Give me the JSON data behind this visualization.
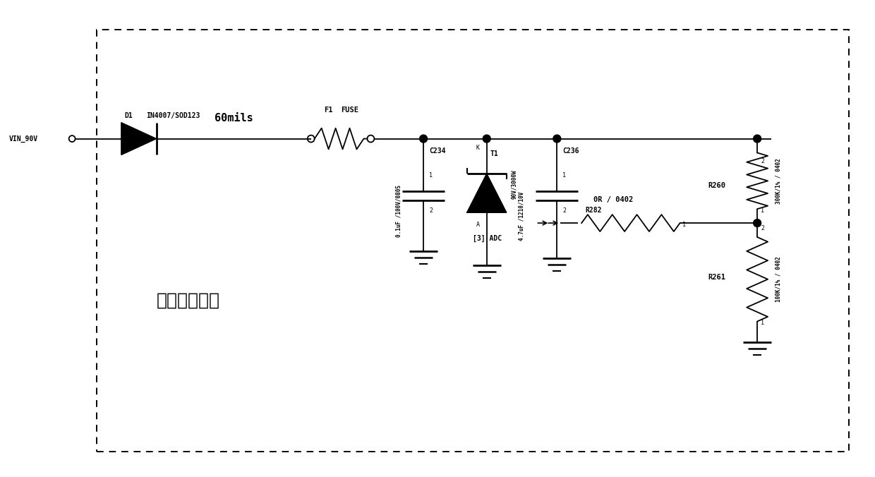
{
  "bg_color": "#ffffff",
  "fig_width": 12.4,
  "fig_height": 6.76,
  "dpi": 100,
  "title_chinese": "电池检测模块",
  "vin_label": "VIN_90V",
  "d1_label": "D1",
  "d1_part": "IN4007/SOD123",
  "fuse_ref": "F1",
  "fuse_val": "FUSE",
  "fuse_label": "60mils",
  "c234_ref": "C234",
  "c234_val": "0.1uF /100V/0805",
  "c234_pin1": "1",
  "c234_pin2": "2",
  "t1_ref": "T1",
  "t1_val": "90V/3000W",
  "t1_pinK": "K",
  "t1_pinA": "A",
  "c236_ref": "C236",
  "c236_val": "4.7uF /1210/10V",
  "c236_pin1": "1",
  "c236_pin2": "2",
  "r282_ref": "R282",
  "r282_val": "0R / 0402",
  "r282_pin1": "1",
  "r260_ref": "R260",
  "r260_val": "300K/1% / 0402",
  "r260_pin1": "1",
  "r260_pin2": "2",
  "r261_ref": "R261",
  "r261_val": "100K/1% / 0402",
  "r261_pin1": "1",
  "r261_pin2": "2",
  "adc_label": "[3] ADC",
  "or0402_label": "0R / 0402"
}
